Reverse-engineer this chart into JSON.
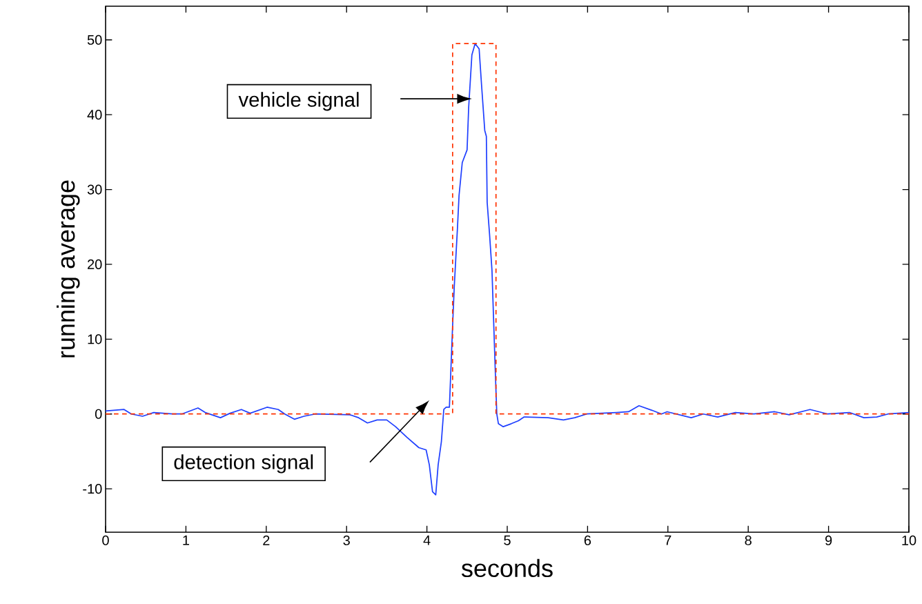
{
  "chart_data": {
    "type": "line",
    "xlabel": "seconds",
    "ylabel": "running average",
    "xlim": [
      0,
      10
    ],
    "ylim": [
      -15.8,
      54.5
    ],
    "xticks": [
      0,
      1,
      2,
      3,
      4,
      5,
      6,
      7,
      8,
      9,
      10
    ],
    "yticks": [
      -10,
      0,
      10,
      20,
      30,
      40,
      50
    ],
    "grid": false,
    "marker": "none",
    "series": [
      {
        "color": "#2040ff",
        "line_style": "solid",
        "x": [
          0,
          0.23,
          0.32,
          0.46,
          0.6,
          0.83,
          0.95,
          1.15,
          1.24,
          1.43,
          1.55,
          1.69,
          1.8,
          2.01,
          2.15,
          2.23,
          2.35,
          2.47,
          2.61,
          3.04,
          3.15,
          3.26,
          3.38,
          3.5,
          3.61,
          3.75,
          3.9,
          3.99,
          4.03,
          4.07,
          4.11,
          4.14,
          4.18,
          4.21,
          4.24,
          4.28,
          4.32,
          4.34,
          4.38,
          4.4,
          4.44,
          4.5,
          4.52,
          4.56,
          4.6,
          4.65,
          4.68,
          4.72,
          4.74,
          4.75,
          4.78,
          4.81,
          4.85,
          4.87,
          4.89,
          4.95,
          5.05,
          5.14,
          5.21,
          5.51,
          5.7,
          5.84,
          5.99,
          6.36,
          6.51,
          6.64,
          6.8,
          6.92,
          6.99,
          7.29,
          7.44,
          7.62,
          7.84,
          8.07,
          8.33,
          8.51,
          8.77,
          8.99,
          9.26,
          9.44,
          9.6,
          9.74,
          10
        ],
        "values": [
          0.4,
          0.6,
          0,
          -0.3,
          0.2,
          0,
          0,
          0.8,
          0.2,
          -0.5,
          0.1,
          0.6,
          0.1,
          0.9,
          0.6,
          0,
          -0.7,
          -0.3,
          0,
          -0.1,
          -0.5,
          -1.2,
          -0.8,
          -0.8,
          -1.7,
          -3.1,
          -4.5,
          -4.8,
          -6.8,
          -10.4,
          -10.8,
          -6.8,
          -3.7,
          0.6,
          0.9,
          0.9,
          11.8,
          16.9,
          24.8,
          29.2,
          33.6,
          35.3,
          41,
          48,
          49.5,
          48.8,
          44,
          37.9,
          37.1,
          28.3,
          24,
          19.2,
          6.1,
          0,
          -1.3,
          -1.7,
          -1.3,
          -0.9,
          -0.4,
          -0.5,
          -0.8,
          -0.5,
          0,
          0.2,
          0.3,
          1.1,
          0.5,
          0,
          0.3,
          -0.5,
          0,
          -0.4,
          0.2,
          0,
          0.3,
          -0.1,
          0.6,
          0,
          0.2,
          -0.5,
          -0.4,
          0,
          0.2
        ]
      },
      {
        "color": "#ff3300",
        "line_style": "dashed",
        "x": [
          0,
          4.32,
          4.32,
          4.86,
          4.86,
          10
        ],
        "values": [
          0,
          0,
          49.5,
          49.5,
          0,
          0
        ]
      }
    ],
    "annotations": [
      "vehicle signal",
      "detection signal"
    ]
  }
}
